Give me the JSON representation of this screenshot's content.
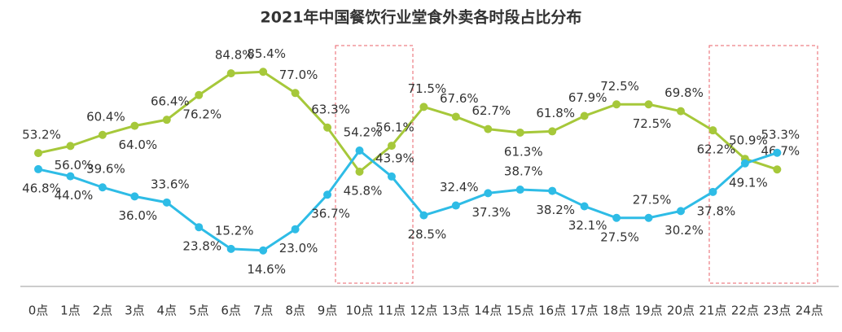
{
  "chart_data": {
    "type": "line",
    "title": "2021年中国餐饮行业堂食外卖各时段占比分布",
    "categories": [
      "0点",
      "1点",
      "2点",
      "3点",
      "4点",
      "5点",
      "6点",
      "7点",
      "8点",
      "9点",
      "10点",
      "11点",
      "12点",
      "13点",
      "14点",
      "15点",
      "16点",
      "17点",
      "18点",
      "19点",
      "20点",
      "21点",
      "22点",
      "23点",
      "24点"
    ],
    "series": [
      {
        "color": "#a6c83a",
        "values": [
          53.2,
          56.0,
          60.4,
          64.0,
          66.4,
          76.2,
          84.8,
          85.4,
          77.0,
          63.3,
          45.8,
          56.1,
          71.5,
          67.6,
          62.7,
          61.3,
          61.8,
          67.9,
          72.5,
          72.5,
          69.8,
          62.2,
          50.9,
          46.7,
          null
        ],
        "value_labels": [
          "53.2%",
          "56.0%",
          "60.4%",
          "64.0%",
          "66.4%",
          "76.2%",
          "84.8%",
          "85.4%",
          "77.0%",
          "63.3%",
          "45.8%",
          "56.1%",
          "71.5%",
          "67.6%",
          "62.7%",
          "61.3%",
          "61.8%",
          "67.9%",
          "72.5%",
          "72.5%",
          "69.8%",
          "62.2%",
          "50.9%",
          "46.7%",
          null
        ]
      },
      {
        "color": "#2ebce6",
        "values": [
          46.8,
          44.0,
          39.6,
          36.0,
          33.6,
          23.8,
          15.2,
          14.6,
          23.0,
          36.7,
          54.2,
          43.9,
          28.5,
          32.4,
          37.3,
          38.7,
          38.2,
          32.1,
          27.5,
          27.5,
          30.2,
          37.8,
          49.1,
          53.3,
          null
        ],
        "value_labels": [
          "46.8%",
          "44.0%",
          "39.6%",
          "36.0%",
          "33.6%",
          "23.8%",
          "15.2%",
          "14.6%",
          "23.0%",
          "36.7%",
          "54.2%",
          "43.9%",
          "28.5%",
          "32.4%",
          "37.3%",
          "38.7%",
          "38.2%",
          "32.1%",
          "27.5%",
          "27.5%",
          "30.2%",
          "37.8%",
          "49.1%",
          "53.3%",
          null
        ]
      }
    ],
    "ylim": [
      0,
      100
    ]
  }
}
